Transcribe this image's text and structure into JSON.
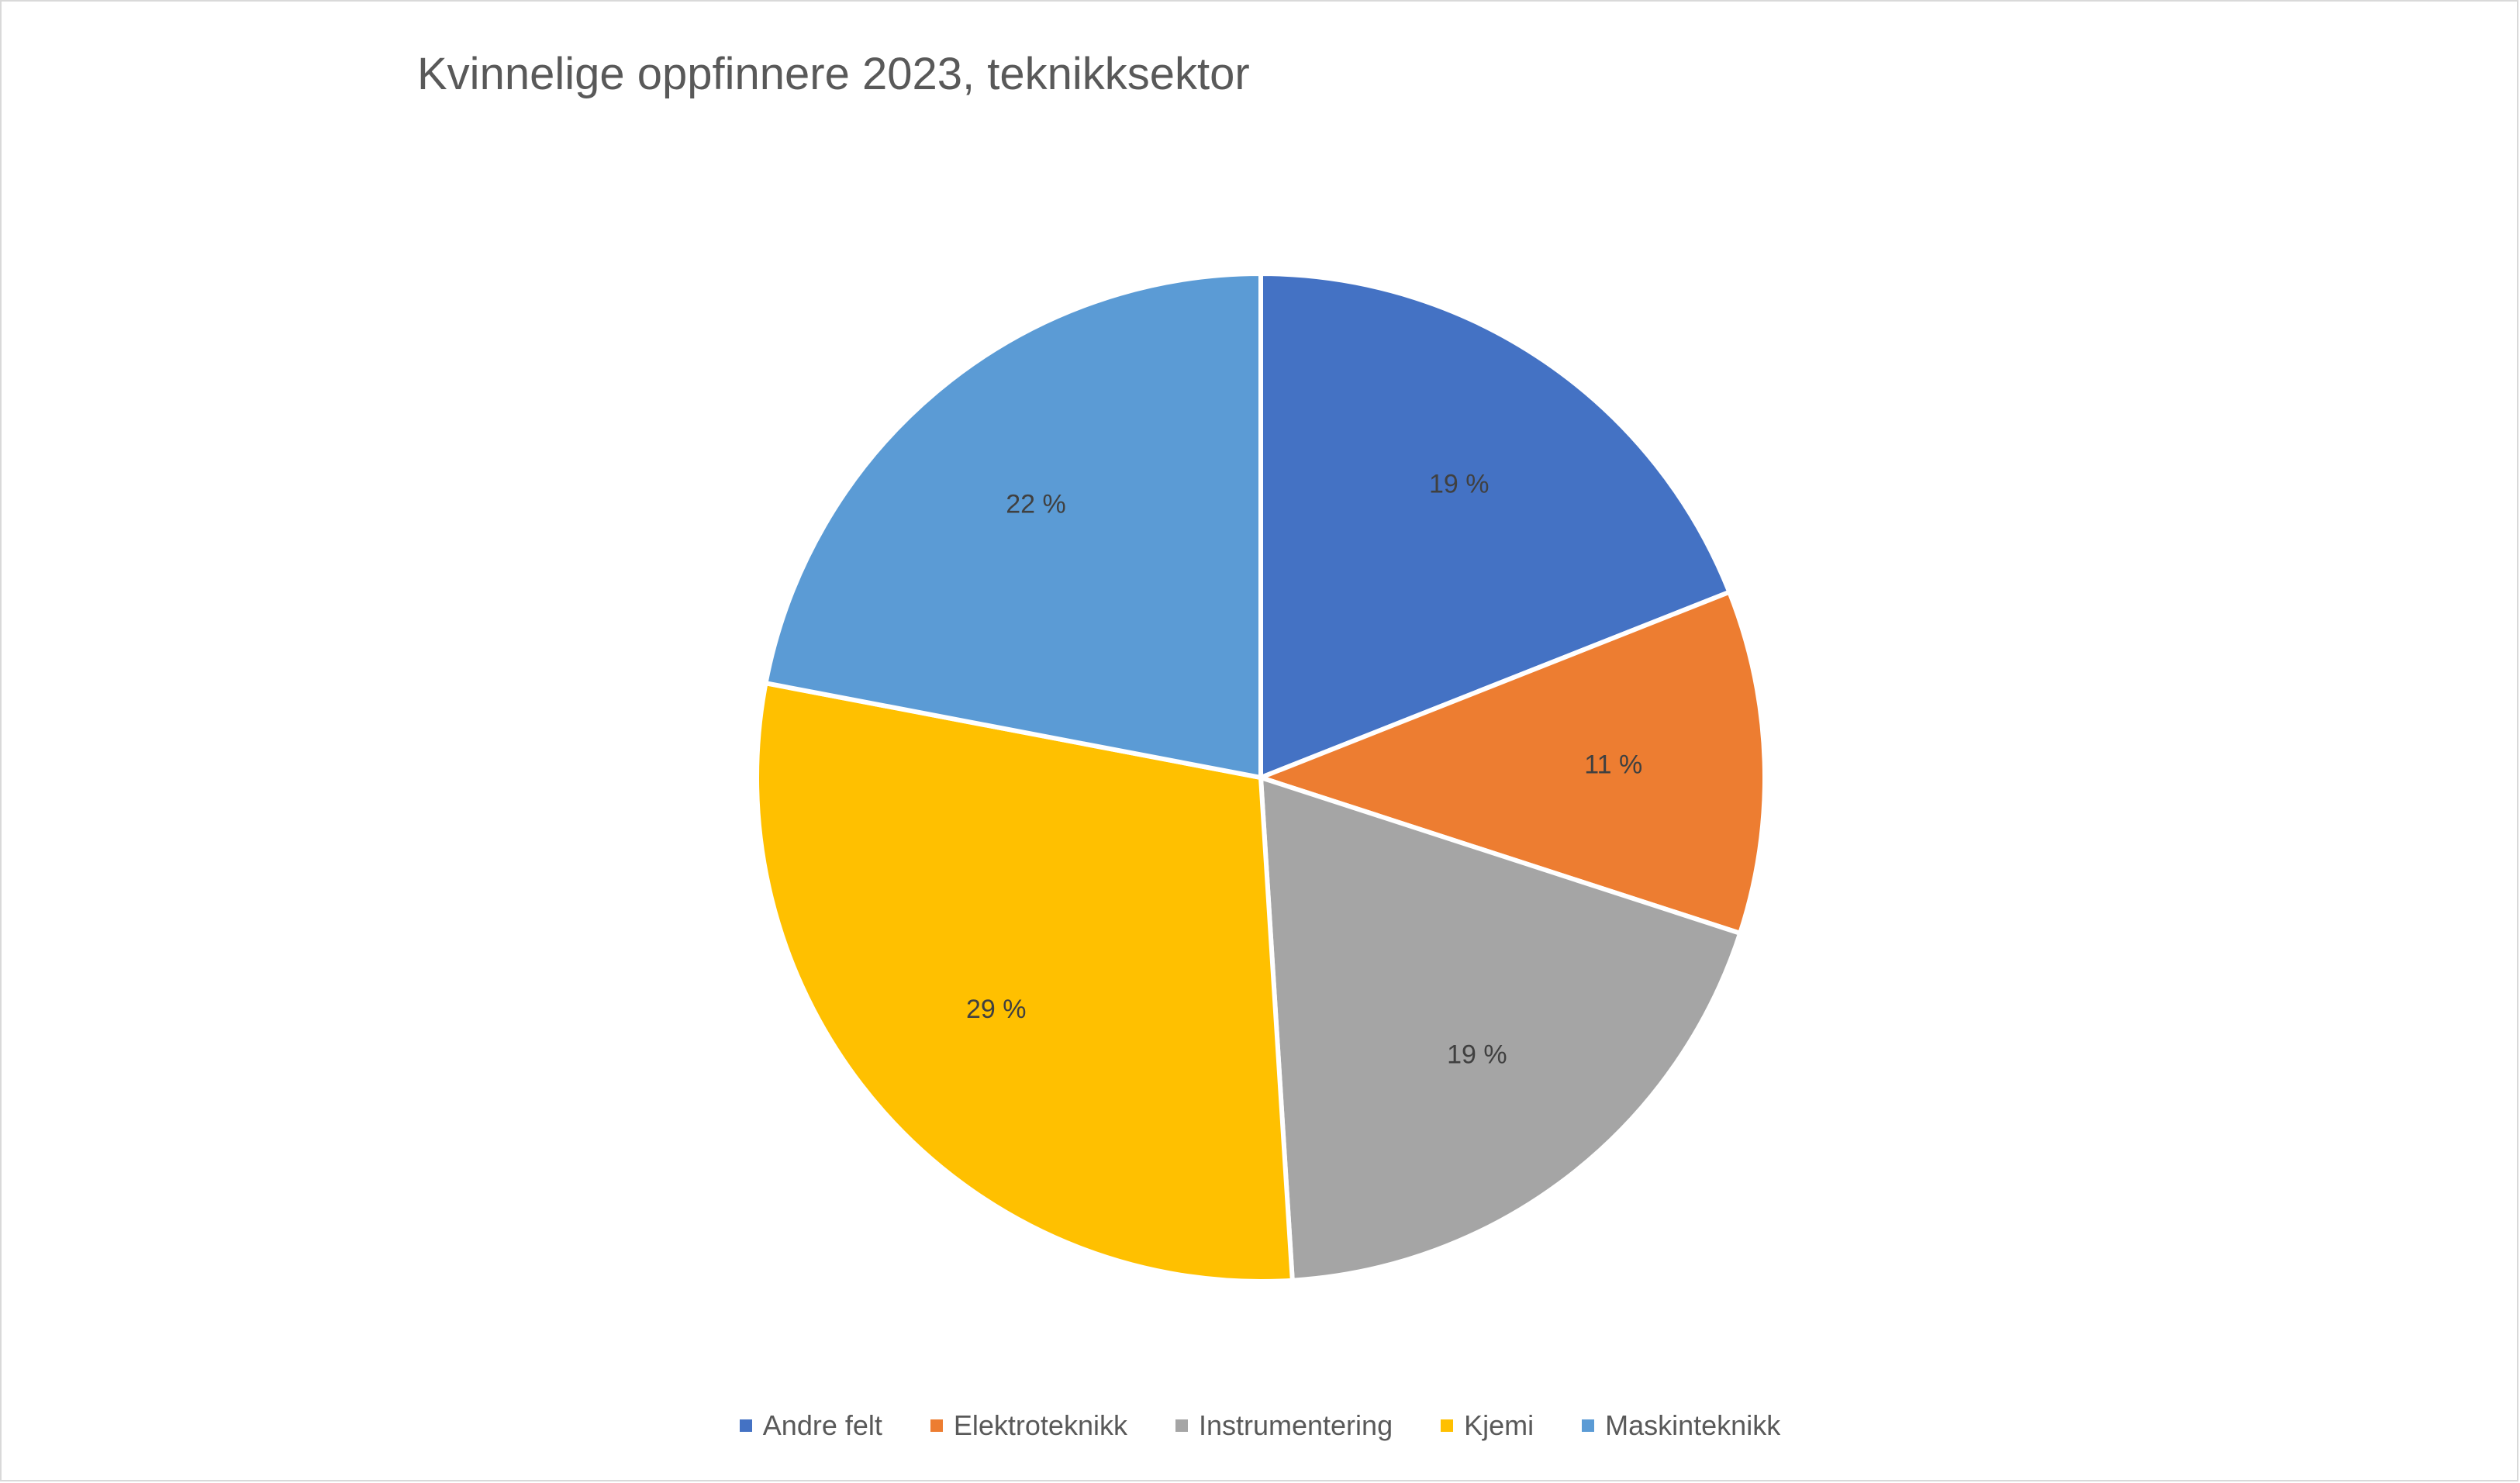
{
  "chart_data": {
    "type": "pie",
    "title": "Kvinnelige oppfinnere 2023, teknikksektor",
    "legend_position": "bottom",
    "slices": [
      {
        "name": "Andre felt",
        "value": 19,
        "label": "19 %",
        "color": "#4472C4"
      },
      {
        "name": "Elektroteknikk",
        "value": 11,
        "label": "11 %",
        "color": "#ED7D31"
      },
      {
        "name": "Instrumentering",
        "value": 19,
        "label": "19 %",
        "color": "#A5A5A5"
      },
      {
        "name": "Kjemi",
        "value": 29,
        "label": "29 %",
        "color": "#FFC000"
      },
      {
        "name": "Maskinteknikk",
        "value": 22,
        "label": "22 %",
        "color": "#5B9BD5"
      }
    ]
  }
}
